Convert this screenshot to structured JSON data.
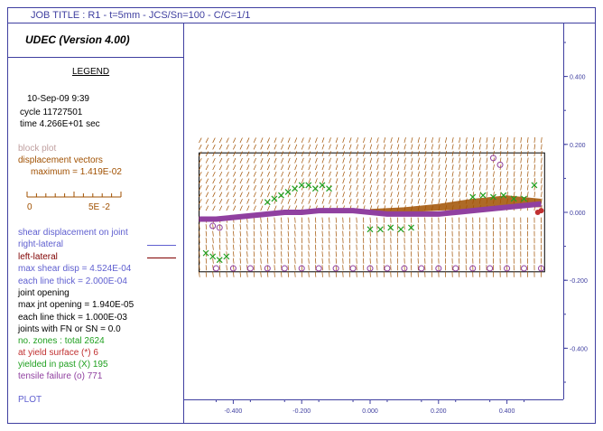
{
  "job_title": "JOB TITLE :  R1 - t=5mm - JCS/Sn=100 - C/C=1/1",
  "app_title": "UDEC (Version 4.00)",
  "legend": {
    "heading": "LEGEND",
    "date": "10-Sep-09   9:39",
    "cycle": "cycle 11727501",
    "time": "time    4.266E+01 sec",
    "block_plot": "block plot",
    "disp_vectors": "displacement vectors",
    "disp_max": "maximum =    1.419E-02",
    "scale_start": "0",
    "scale_end": "5E -2",
    "shear_disp": "shear displacement on joint",
    "right_lateral": "right-lateral",
    "left_lateral": "left-lateral",
    "max_shear": "max shear disp =  4.524E-04",
    "line_thick_1": "each line thick = 2.000E-04",
    "joint_opening": "joint opening",
    "max_jnt_opening": "max jnt opening = 1.940E-05",
    "line_thick_2": "each line thick = 1.000E-03",
    "fn_sn": "joints with FN or SN = 0.0",
    "zones_total": "no. zones : total      2624",
    "at_yield": "at yield surface (*)      6",
    "yielded_past": "yielded in past  (X)     195",
    "tensile_failure": "tensile failure  (o)     771",
    "plot_label": "PLOT"
  },
  "colors": {
    "axis": "#3f3fa0",
    "block_plot": "#c0a0a0",
    "vectors": "#a05000",
    "right_lateral": "#6060d0",
    "left_lateral": "#800000",
    "yielded": "#20a020",
    "at_yield": "#c03030",
    "tensile": "#9040a0",
    "black": "#000000"
  },
  "chart_data": {
    "type": "scatter",
    "title": "",
    "xlabel": "",
    "ylabel": "",
    "xlim": [
      -0.5,
      0.55
    ],
    "ylim": [
      -0.5,
      0.5
    ],
    "x_ticks": [
      "-0.400",
      "-0.200",
      "0.000",
      "0.200",
      "0.400"
    ],
    "x_tick_values": [
      -0.4,
      -0.2,
      0.0,
      0.2,
      0.4
    ],
    "y_ticks": [
      "0.400",
      "0.200",
      "0.000",
      "-0.200",
      "-0.400"
    ],
    "y_tick_values": [
      0.4,
      0.2,
      0.0,
      -0.2,
      -0.4
    ],
    "block_outline": {
      "x": [
        -0.5,
        0.51
      ],
      "y": [
        -0.175,
        0.175
      ]
    },
    "joint_profile": {
      "x": [
        -0.5,
        -0.45,
        -0.4,
        -0.35,
        -0.3,
        -0.25,
        -0.2,
        -0.15,
        -0.1,
        -0.05,
        0.0,
        0.05,
        0.1,
        0.15,
        0.2,
        0.25,
        0.3,
        0.35,
        0.4,
        0.45,
        0.5
      ],
      "y": [
        -0.02,
        -0.02,
        -0.015,
        -0.01,
        -0.005,
        0.0,
        0.0,
        0.005,
        0.005,
        0.005,
        0.0,
        -0.005,
        -0.005,
        -0.005,
        -0.005,
        0.0,
        0.005,
        0.01,
        0.015,
        0.02,
        0.025
      ]
    },
    "brown_band": {
      "x": [
        0.0,
        0.1,
        0.2,
        0.3,
        0.4,
        0.5
      ],
      "y_top": [
        0.01,
        0.015,
        0.025,
        0.04,
        0.05,
        0.04
      ],
      "y_bottom": [
        -0.005,
        0.0,
        0.005,
        0.01,
        0.015,
        0.015
      ]
    },
    "yielded_x": {
      "x": [
        -0.3,
        -0.28,
        -0.26,
        -0.24,
        -0.22,
        -0.2,
        -0.18,
        -0.16,
        -0.14,
        -0.12,
        0.0,
        0.03,
        0.06,
        0.09,
        0.12,
        0.3,
        0.33,
        0.36,
        0.39,
        0.42,
        0.45,
        0.48,
        -0.48,
        -0.46,
        -0.44,
        -0.42
      ],
      "y": [
        0.03,
        0.04,
        0.05,
        0.06,
        0.07,
        0.08,
        0.08,
        0.07,
        0.08,
        0.07,
        -0.05,
        -0.05,
        -0.045,
        -0.05,
        -0.045,
        0.045,
        0.05,
        0.045,
        0.05,
        0.04,
        0.04,
        0.08,
        -0.12,
        -0.13,
        -0.14,
        -0.13
      ]
    },
    "tensile_o": {
      "x": [
        -0.45,
        -0.4,
        -0.35,
        -0.3,
        -0.25,
        -0.2,
        -0.15,
        -0.1,
        -0.05,
        0.0,
        0.05,
        0.1,
        0.15,
        0.2,
        0.25,
        0.3,
        0.35,
        0.4,
        0.45,
        0.5,
        0.36,
        0.38,
        -0.46,
        -0.44
      ],
      "y": [
        -0.165,
        -0.165,
        -0.165,
        -0.165,
        -0.165,
        -0.165,
        -0.165,
        -0.165,
        -0.165,
        -0.165,
        -0.165,
        -0.165,
        -0.165,
        -0.165,
        -0.165,
        -0.165,
        -0.165,
        -0.165,
        -0.165,
        -0.165,
        0.16,
        0.14,
        -0.04,
        -0.045
      ]
    },
    "at_yield": {
      "x": [
        0.49,
        0.5
      ],
      "y": [
        0.0,
        0.005
      ]
    }
  }
}
